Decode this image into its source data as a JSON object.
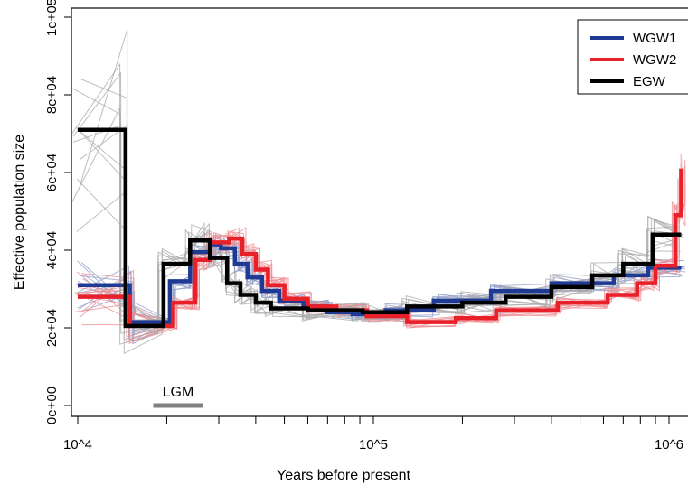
{
  "chart_data": {
    "type": "line",
    "x_scale": "log",
    "xlabel": "Years before present",
    "ylabel": "Effective population size",
    "xlim": [
      10000,
      1100000
    ],
    "ylim": [
      -3000,
      106000
    ],
    "x_ticks": [
      {
        "value": 10000,
        "label": "10^4"
      },
      {
        "value": 100000,
        "label": "10^5"
      },
      {
        "value": 1000000,
        "label": "10^6"
      }
    ],
    "y_ticks": [
      {
        "value": 0,
        "label": "0e+00"
      },
      {
        "value": 20000,
        "label": "2e+04"
      },
      {
        "value": 40000,
        "label": "4e+04"
      },
      {
        "value": 60000,
        "label": "6e+04"
      },
      {
        "value": 80000,
        "label": "8e+04"
      },
      {
        "value": 100000,
        "label": "1e+05"
      }
    ],
    "legend": {
      "position": "top-right",
      "entries": [
        {
          "label": "WGW1",
          "color": "#1f3a93"
        },
        {
          "label": "WGW2",
          "color": "#e8202a"
        },
        {
          "label": "EGW",
          "color": "#000000"
        }
      ]
    },
    "series": [
      {
        "name": "WGW1",
        "color": "#1f3a93",
        "points": [
          [
            10000,
            31000
          ],
          [
            15000,
            31000
          ],
          [
            15000,
            21500
          ],
          [
            20500,
            21500
          ],
          [
            20500,
            32000
          ],
          [
            24000,
            32000
          ],
          [
            24000,
            39500
          ],
          [
            28000,
            39500
          ],
          [
            28000,
            41500
          ],
          [
            30500,
            41500
          ],
          [
            30500,
            40500
          ],
          [
            34000,
            40500
          ],
          [
            34000,
            36500
          ],
          [
            37500,
            36500
          ],
          [
            37500,
            33000
          ],
          [
            42000,
            33000
          ],
          [
            42000,
            29500
          ],
          [
            48000,
            29500
          ],
          [
            48000,
            27000
          ],
          [
            58000,
            27000
          ],
          [
            58000,
            25500
          ],
          [
            70000,
            25500
          ],
          [
            70000,
            24000
          ],
          [
            85000,
            24000
          ],
          [
            85000,
            23500
          ],
          [
            110000,
            23500
          ],
          [
            110000,
            24500
          ],
          [
            160000,
            24500
          ],
          [
            160000,
            27000
          ],
          [
            250000,
            27000
          ],
          [
            250000,
            29500
          ],
          [
            400000,
            29500
          ],
          [
            400000,
            31500
          ],
          [
            650000,
            31500
          ],
          [
            650000,
            33500
          ],
          [
            850000,
            33500
          ],
          [
            850000,
            35500
          ],
          [
            1100000,
            35500
          ]
        ]
      },
      {
        "name": "WGW2",
        "color": "#e8202a",
        "points": [
          [
            10000,
            28000
          ],
          [
            15000,
            28000
          ],
          [
            15000,
            20500
          ],
          [
            21000,
            20500
          ],
          [
            21000,
            26500
          ],
          [
            25000,
            26500
          ],
          [
            25000,
            37500
          ],
          [
            28000,
            37500
          ],
          [
            28000,
            42000
          ],
          [
            32500,
            42000
          ],
          [
            32500,
            43000
          ],
          [
            36000,
            43000
          ],
          [
            36000,
            39000
          ],
          [
            40000,
            39000
          ],
          [
            40000,
            35000
          ],
          [
            44000,
            35000
          ],
          [
            44000,
            31000
          ],
          [
            50000,
            31000
          ],
          [
            50000,
            27500
          ],
          [
            60000,
            27500
          ],
          [
            60000,
            25500
          ],
          [
            75000,
            25500
          ],
          [
            75000,
            24500
          ],
          [
            95000,
            24500
          ],
          [
            95000,
            23000
          ],
          [
            130000,
            23000
          ],
          [
            130000,
            21500
          ],
          [
            190000,
            21500
          ],
          [
            190000,
            22500
          ],
          [
            260000,
            22500
          ],
          [
            260000,
            24500
          ],
          [
            420000,
            24500
          ],
          [
            420000,
            26500
          ],
          [
            620000,
            26500
          ],
          [
            620000,
            28500
          ],
          [
            780000,
            28500
          ],
          [
            780000,
            31500
          ],
          [
            900000,
            31500
          ],
          [
            900000,
            36000
          ],
          [
            1050000,
            36000
          ],
          [
            1050000,
            49000
          ],
          [
            1100000,
            49000
          ],
          [
            1100000,
            61000
          ]
        ]
      },
      {
        "name": "EGW",
        "color": "#000000",
        "points": [
          [
            10000,
            71000
          ],
          [
            14500,
            71000
          ],
          [
            14500,
            20500
          ],
          [
            19500,
            20500
          ],
          [
            19500,
            36500
          ],
          [
            24000,
            36500
          ],
          [
            24000,
            42500
          ],
          [
            28000,
            42500
          ],
          [
            28000,
            38000
          ],
          [
            32000,
            38000
          ],
          [
            32000,
            31500
          ],
          [
            35500,
            31500
          ],
          [
            35500,
            28500
          ],
          [
            40000,
            28500
          ],
          [
            40000,
            26500
          ],
          [
            45000,
            26500
          ],
          [
            45000,
            25000
          ],
          [
            60000,
            25000
          ],
          [
            60000,
            24500
          ],
          [
            92000,
            24500
          ],
          [
            92000,
            24000
          ],
          [
            130000,
            24000
          ],
          [
            130000,
            25500
          ],
          [
            200000,
            25500
          ],
          [
            200000,
            26500
          ],
          [
            280000,
            26500
          ],
          [
            280000,
            28000
          ],
          [
            400000,
            28000
          ],
          [
            400000,
            30500
          ],
          [
            550000,
            30500
          ],
          [
            550000,
            33500
          ],
          [
            700000,
            33500
          ],
          [
            700000,
            36500
          ],
          [
            880000,
            36500
          ],
          [
            880000,
            44000
          ],
          [
            1100000,
            44000
          ]
        ]
      }
    ],
    "annotations": [
      {
        "label": "LGM",
        "x_start": 18000,
        "x_end": 26500,
        "y": 0
      }
    ]
  }
}
